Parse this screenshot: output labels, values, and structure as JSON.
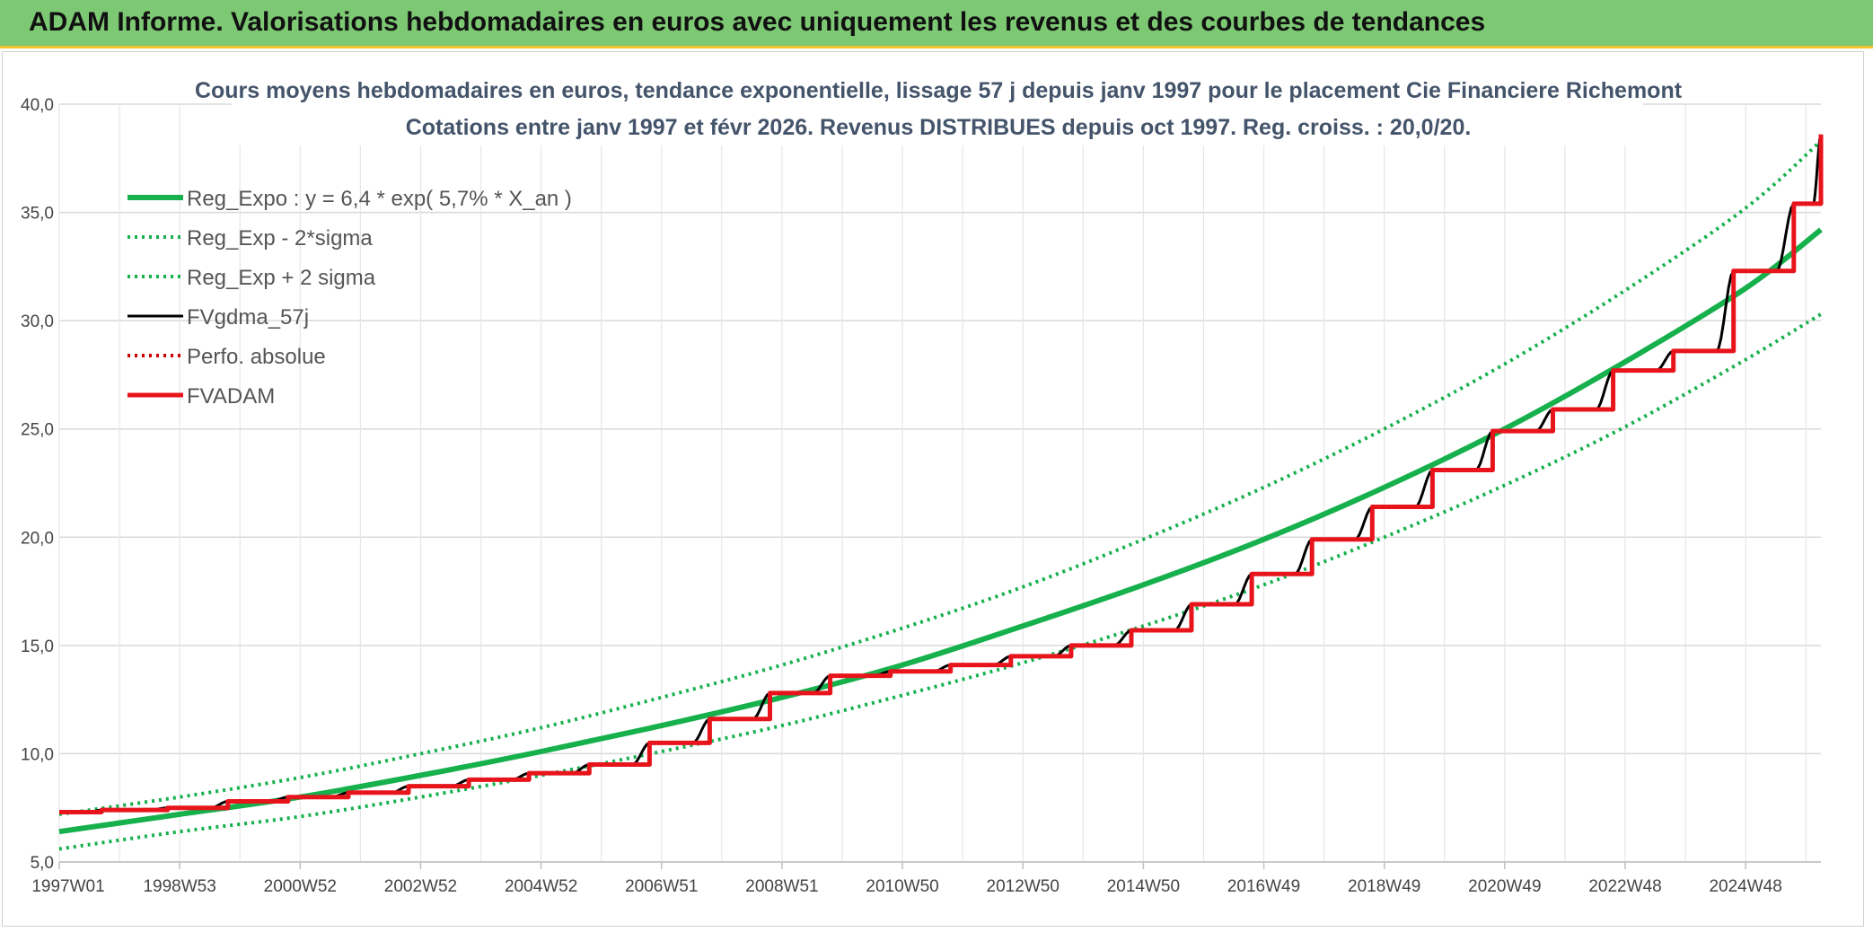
{
  "header": {
    "title": "ADAM Informe. Valorisations hebdomadaires en euros avec uniquement les revenus et des courbes de tendances"
  },
  "colors": {
    "header_bg": "#7dc873",
    "header_border": "#f4c430",
    "trend": "#16b04c",
    "fvgdma": "#000000",
    "perfo": "#cc0000",
    "fvadam": "#e8141c",
    "grid": "#d9d9d9"
  },
  "chart_data": {
    "type": "line",
    "title": [
      "Cours moyens hebdomadaires en euros, tendance exponentielle, lissage 57 j depuis janv 1997 pour le placement Cie Financiere Richemont",
      "Cotations entre janv 1997 et févr 2026. Revenus DISTRIBUES depuis oct 1997. Reg. croiss. : 20,0/20."
    ],
    "xlabel": "",
    "ylabel": "",
    "x_ticks": [
      "1997W01",
      "1998W53",
      "2000W52",
      "2002W52",
      "2004W52",
      "2006W51",
      "2008W51",
      "2010W50",
      "2012W50",
      "2014W50",
      "2016W49",
      "2018W49",
      "2020W49",
      "2022W48",
      "2024W48"
    ],
    "x_tick_years": [
      1997.0,
      1999.0,
      2001.0,
      2003.0,
      2005.0,
      2007.0,
      2009.0,
      2011.0,
      2013.0,
      2015.0,
      2017.0,
      2019.0,
      2021.0,
      2023.0,
      2025.0
    ],
    "xlim": [
      1997.0,
      2026.25
    ],
    "y_ticks": [
      "5,0",
      "10,0",
      "15,0",
      "20,0",
      "25,0",
      "30,0",
      "35,0",
      "40,0"
    ],
    "ylim": [
      5,
      40
    ],
    "grid": true,
    "legend_position": "top-left",
    "series": [
      {
        "name": "Reg_Expo : y = 6,4 * exp( 5,7% *  X_an )",
        "style": "solid-thick",
        "color": "#16b04c",
        "x": [
          1997.0,
          1999.0,
          2001.0,
          2003.0,
          2005.0,
          2007.0,
          2009.0,
          2011.0,
          2013.0,
          2015.0,
          2017.0,
          2019.0,
          2021.0,
          2023.0,
          2025.0,
          2026.25
        ],
        "y": [
          6.4,
          7.2,
          8.0,
          9.0,
          10.1,
          11.3,
          12.6,
          14.1,
          15.9,
          17.8,
          19.9,
          22.3,
          25.0,
          28.1,
          31.5,
          34.2
        ]
      },
      {
        "name": "Reg_Exp - 2*sigma",
        "style": "dotted",
        "color": "#16b04c",
        "x": [
          1997.0,
          1999.0,
          2001.0,
          2003.0,
          2005.0,
          2007.0,
          2009.0,
          2011.0,
          2013.0,
          2015.0,
          2017.0,
          2019.0,
          2021.0,
          2023.0,
          2025.0,
          2026.25
        ],
        "y": [
          5.6,
          6.4,
          7.1,
          8.0,
          9.0,
          10.1,
          11.3,
          12.7,
          14.2,
          15.9,
          17.8,
          20.0,
          22.4,
          25.1,
          28.2,
          30.3
        ]
      },
      {
        "name": "Reg_Exp + 2 sigma",
        "style": "dotted",
        "color": "#16b04c",
        "x": [
          1997.0,
          1999.0,
          2001.0,
          2003.0,
          2005.0,
          2007.0,
          2009.0,
          2011.0,
          2013.0,
          2015.0,
          2017.0,
          2019.0,
          2021.0,
          2023.0,
          2025.0,
          2026.25
        ],
        "y": [
          7.2,
          8.0,
          8.9,
          10.0,
          11.2,
          12.6,
          14.1,
          15.8,
          17.7,
          19.9,
          22.3,
          25.0,
          28.0,
          31.4,
          35.2,
          38.3
        ]
      },
      {
        "name": "FVgdma_57j",
        "style": "solid",
        "color": "#000000",
        "x": [
          1997.0,
          1997.7,
          1998.8,
          1999.8,
          2000.8,
          2001.8,
          2002.8,
          2003.8,
          2004.8,
          2005.8,
          2006.8,
          2007.8,
          2008.8,
          2009.8,
          2010.8,
          2011.8,
          2012.8,
          2013.8,
          2014.8,
          2015.8,
          2016.8,
          2017.8,
          2018.8,
          2019.8,
          2020.8,
          2021.8,
          2022.8,
          2023.8,
          2024.8,
          2025.8,
          2026.25
        ],
        "y": [
          7.3,
          7.4,
          7.5,
          7.8,
          8.0,
          8.2,
          8.5,
          8.8,
          9.1,
          9.5,
          10.5,
          11.6,
          12.8,
          13.6,
          13.8,
          14.1,
          14.5,
          15.0,
          15.7,
          16.9,
          18.3,
          19.9,
          21.4,
          23.1,
          24.9,
          25.9,
          27.7,
          28.6,
          32.3,
          35.4,
          38.6
        ]
      },
      {
        "name": "Perfo. absolue",
        "style": "dotted",
        "color": "#cc0000",
        "x": [],
        "y": []
      },
      {
        "name": "FVADAM",
        "style": "step-thick",
        "color": "#e8141c",
        "step_x": [
          1997.0,
          1997.7,
          1998.8,
          1999.8,
          2000.8,
          2001.8,
          2002.8,
          2003.8,
          2004.8,
          2005.8,
          2006.8,
          2007.8,
          2008.8,
          2009.8,
          2010.8,
          2011.8,
          2012.8,
          2013.8,
          2014.8,
          2015.8,
          2016.8,
          2017.8,
          2018.8,
          2019.8,
          2020.8,
          2021.8,
          2022.8,
          2023.8,
          2024.8,
          2025.8
        ],
        "step_y": [
          7.3,
          7.4,
          7.5,
          7.8,
          8.0,
          8.2,
          8.5,
          8.8,
          9.1,
          9.5,
          10.5,
          11.6,
          12.8,
          13.6,
          13.8,
          14.1,
          14.5,
          15.0,
          15.7,
          16.9,
          18.3,
          19.9,
          21.4,
          23.1,
          24.9,
          25.9,
          27.7,
          28.6,
          32.3,
          35.4,
          38.6
        ],
        "x_end": 2026.25
      }
    ]
  }
}
